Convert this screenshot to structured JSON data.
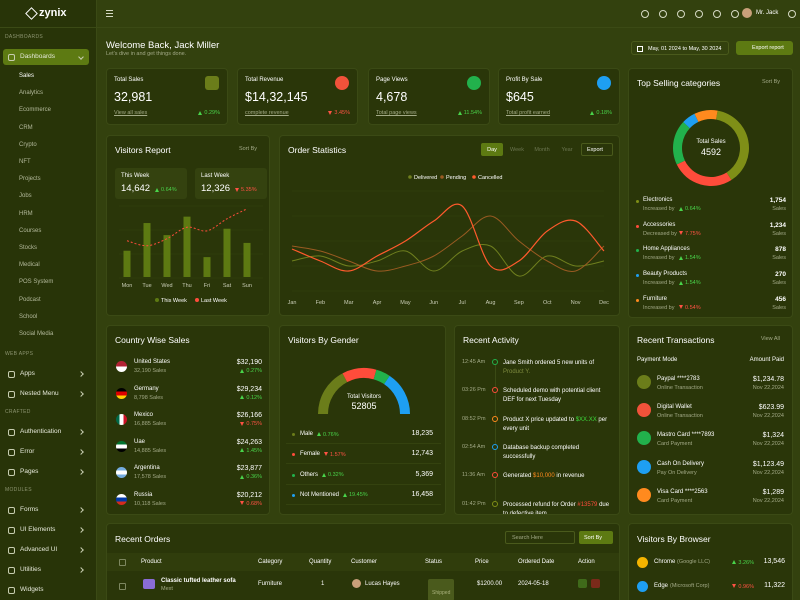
{
  "brand": "zynix",
  "header": {
    "user": "Mr. Jack"
  },
  "sidebar": [
    {
      "title": "DASHBOARDS",
      "items": [
        {
          "label": "Dashboards",
          "active": true,
          "submenu": true,
          "children": [
            {
              "label": "Sales",
              "active": true
            },
            {
              "label": "Analytics"
            },
            {
              "label": "Ecommerce"
            },
            {
              "label": "CRM"
            },
            {
              "label": "Crypto"
            },
            {
              "label": "NFT"
            },
            {
              "label": "Projects"
            },
            {
              "label": "Jobs"
            },
            {
              "label": "HRM"
            },
            {
              "label": "Courses"
            },
            {
              "label": "Stocks"
            },
            {
              "label": "Medical"
            },
            {
              "label": "POS System"
            },
            {
              "label": "Podcast"
            },
            {
              "label": "School"
            },
            {
              "label": "Social Media"
            }
          ]
        }
      ]
    },
    {
      "title": "WEB APPS",
      "items": [
        {
          "label": "Apps",
          "submenu": true
        },
        {
          "label": "Nested Menu",
          "submenu": true
        }
      ]
    },
    {
      "title": "CRAFTED",
      "items": [
        {
          "label": "Authentication",
          "submenu": true
        },
        {
          "label": "Error",
          "submenu": true
        },
        {
          "label": "Pages",
          "submenu": true
        }
      ]
    },
    {
      "title": "MODULES",
      "items": [
        {
          "label": "Forms",
          "submenu": true
        },
        {
          "label": "UI Elements",
          "submenu": true
        },
        {
          "label": "Advanced UI",
          "submenu": true
        },
        {
          "label": "Utilities",
          "submenu": true
        },
        {
          "label": "Widgets"
        }
      ]
    }
  ],
  "welcome": {
    "title": "Welcome Back, Jack Miller",
    "subtitle": "Let's dive in and get things done.",
    "date_range": "May, 01 2024 to May, 30 2024",
    "button": "Export report"
  },
  "stats": [
    {
      "title": "Total Sales",
      "value": "32,981",
      "link": "View all sales",
      "change": {
        "text": "0.29%",
        "trend": "up"
      },
      "icon_color": "#6b7d1a"
    },
    {
      "title": "Total Revenue",
      "value": "$14,32,145",
      "link": "complete revenue",
      "change": {
        "text": "3.45%",
        "trend": "down"
      },
      "icon_color": "#f0523a"
    },
    {
      "title": "Page Views",
      "value": "4,678",
      "link": "Total page views",
      "change": {
        "text": "11.54%",
        "trend": "up"
      },
      "icon_color": "#22b14c"
    },
    {
      "title": "Profit By Sale",
      "value": "$645",
      "link": "Total profit earned",
      "change": {
        "text": "0.18%",
        "trend": "up"
      },
      "icon_color": "#1e9ff2"
    }
  ],
  "visitors_report": {
    "title": "Visitors Report",
    "sort": "Sort By",
    "summary": [
      {
        "value": "14,642",
        "change": {
          "text": "0.64%",
          "trend": "up"
        }
      },
      {
        "value": "12,326",
        "change": {
          "text": "5.35%",
          "trend": "down"
        }
      }
    ],
    "chart": {
      "type": "bar",
      "categories": [
        "Mon",
        "Tue",
        "Wed",
        "Thu",
        "Fri",
        "Sat",
        "Sun"
      ],
      "ylim": [
        0,
        100
      ],
      "series": [
        {
          "name": "This Week",
          "color": "#5d7a12",
          "values": [
            37,
            76,
            59,
            85,
            28,
            68,
            48
          ]
        },
        {
          "name": "Last Week",
          "color": "#ff4c3b",
          "values": [
            51,
            44,
            54,
            70,
            65,
            82,
            96
          ]
        }
      ]
    }
  },
  "order_statistics": {
    "title": "Order Statistics",
    "tabs": [
      {
        "label": "Day",
        "active": true
      },
      {
        "label": "Week"
      },
      {
        "label": "Month"
      },
      {
        "label": "Year"
      }
    ],
    "export": "Export",
    "chart": {
      "type": "line",
      "categories": [
        "Jan",
        "Feb",
        "Mar",
        "Apr",
        "May",
        "Jun",
        "Jul",
        "Aug",
        "Sep",
        "Oct",
        "Nov",
        "Dec"
      ],
      "ylim": [
        0,
        100
      ],
      "series": [
        {
          "name": "Delivered",
          "color": "#6f7f1e",
          "values": [
            30,
            35,
            25,
            30,
            40,
            20,
            40,
            45,
            15,
            35,
            25,
            30
          ]
        },
        {
          "name": "Pending",
          "color": "#9a5b22",
          "values": [
            45,
            40,
            30,
            20,
            25,
            35,
            55,
            75,
            50,
            30,
            20,
            45
          ]
        },
        {
          "name": "Cancelled",
          "color": "#ff5a2c",
          "values": [
            42,
            30,
            20,
            35,
            50,
            70,
            85,
            25,
            30,
            60,
            70,
            40
          ]
        }
      ]
    }
  },
  "top_selling": {
    "title": "Top Selling categories",
    "sort": "Sort By",
    "center_label": "Total Sales",
    "total": 4592,
    "unit": "Sales",
    "items": [
      {
        "name": "Electronics",
        "trend_text": "Increased by",
        "change": {
          "text": "0.64%",
          "trend": "up"
        },
        "sales": 1754,
        "sales_label": "1,754",
        "color": "#7f8f17"
      },
      {
        "name": "Accessories",
        "trend_text": "Decreased by",
        "change": {
          "text": "7.75%",
          "trend": "down"
        },
        "sales": 1234,
        "sales_label": "1,234",
        "color": "#ff4c3b"
      },
      {
        "name": "Home Appliances",
        "trend_text": "Increased by",
        "change": {
          "text": "1.54%",
          "trend": "up"
        },
        "sales": 878,
        "sales_label": "878",
        "color": "#22b14c"
      },
      {
        "name": "Beauty Products",
        "trend_text": "Increased by",
        "change": {
          "text": "1.54%",
          "trend": "up"
        },
        "sales": 270,
        "sales_label": "270",
        "color": "#1e9ff2"
      },
      {
        "name": "Furniture",
        "trend_text": "Increased by",
        "change": {
          "text": "0.54%",
          "trend": "down"
        },
        "sales": 456,
        "sales_label": "456",
        "color": "#ff8a1e"
      }
    ]
  },
  "country_sales": {
    "title": "Country Wise Sales",
    "rows": [
      {
        "country": "United States",
        "sales": "32,190 Sales",
        "amount": "$32,190",
        "change": {
          "text": "0.27%",
          "trend": "up"
        }
      },
      {
        "country": "Germany",
        "sales": "8,798 Sales",
        "amount": "$29,234",
        "change": {
          "text": "0.12%",
          "trend": "up"
        }
      },
      {
        "country": "Mexico",
        "sales": "16,885 Sales",
        "amount": "$26,166",
        "change": {
          "text": "0.75%",
          "trend": "down"
        }
      },
      {
        "country": "Uae",
        "sales": "14,885 Sales",
        "amount": "$24,263",
        "change": {
          "text": "1.45%",
          "trend": "up"
        }
      },
      {
        "country": "Argentina",
        "sales": "17,578 Sales",
        "amount": "$23,877",
        "change": {
          "text": "0.36%",
          "trend": "up"
        }
      },
      {
        "country": "Russia",
        "sales": "10,118 Sales",
        "amount": "$20,212",
        "change": {
          "text": "0.68%",
          "trend": "down"
        }
      }
    ]
  },
  "visitors_gender": {
    "title": "Visitors By Gender",
    "center_label": "Total Visitors",
    "total": 52805,
    "rows": [
      {
        "label": "Male",
        "change": {
          "text": "0.76%",
          "trend": "up"
        },
        "value": 18235,
        "value_label": "18,235",
        "color": "#6b7d1a"
      },
      {
        "label": "Female",
        "change": {
          "text": "1.57%",
          "trend": "down"
        },
        "value": 12743,
        "value_label": "12,743",
        "color": "#ff4c3b"
      },
      {
        "label": "Others",
        "change": {
          "text": "0.32%",
          "trend": "up"
        },
        "value": 5369,
        "value_label": "5,369",
        "color": "#22b14c"
      },
      {
        "label": "Not Mentioned",
        "change": {
          "text": "19.45%",
          "trend": "up"
        },
        "value": 16458,
        "value_label": "16,458",
        "color": "#1e9ff2"
      }
    ]
  },
  "recent_activity": {
    "title": "Recent Activity",
    "items": [
      {
        "time": "12:45 Am",
        "before": "Jane Smith ordered 5 new units of ",
        "highlight": "Product Y.",
        "after": "",
        "highlight_color": "#7d8a3e",
        "dot": "#22b14c"
      },
      {
        "time": "03:26 Pm",
        "before": "Scheduled demo with potential client DEF for next Tuesday",
        "highlight": "",
        "after": "",
        "highlight_color": "#ffffff",
        "dot": "#ff4c3b"
      },
      {
        "time": "08:52 Pm",
        "before": "Product X price updated to ",
        "highlight": "$XX.XX",
        "after": " per every unit",
        "highlight_color": "#3ddc3d",
        "dot": "#ff8a1e"
      },
      {
        "time": "02:54 Am",
        "before": "Database backup completed successfully",
        "highlight": "",
        "after": "",
        "highlight_color": "#ffffff",
        "dot": "#1e9ff2"
      },
      {
        "time": "11:36 Am",
        "before": "Generated ",
        "highlight": "$10,000",
        "after": " in revenue",
        "highlight_color": "#ff8a1e",
        "dot": "#ff4c3b"
      },
      {
        "time": "01:42 Pm",
        "before": "Processed refund for Order ",
        "highlight": "#13579",
        "after": " due to defective item",
        "highlight_color": "#ff4c3b",
        "dot": "#7f8f17"
      }
    ]
  },
  "recent_transactions": {
    "title": "Recent Transactions",
    "view_all": "View All",
    "col_left": "Payment Mode",
    "col_right": "Amount Paid",
    "rows": [
      {
        "name": "Paypal ****2783",
        "type": "Online Transaction",
        "amount": "$1,234.78",
        "date": "Nov 22,2024",
        "icon_color": "#6b7d1a"
      },
      {
        "name": "Digital Wallet",
        "type": "Online Transaction",
        "amount": "$623.99",
        "date": "Nov 22,2024",
        "icon_color": "#f0523a"
      },
      {
        "name": "Mastro Card ****7893",
        "type": "Card Payment",
        "amount": "$1,324",
        "date": "Nov 22,2024",
        "icon_color": "#22b14c"
      },
      {
        "name": "Cash On Delivery",
        "type": "Pay On Delivery",
        "amount": "$1,123.49",
        "date": "Nov 22,2024",
        "icon_color": "#1e9ff2"
      },
      {
        "name": "Visa Card ****2563",
        "type": "Card Payment",
        "amount": "$1,289",
        "date": "Nov 22,2024",
        "icon_color": "#ff8a1e"
      }
    ]
  },
  "recent_orders": {
    "title": "Recent Orders",
    "search": "Search Here",
    "sort": "Sort By",
    "columns": [
      "Product",
      "Category",
      "Quantity",
      "Customer",
      "Status",
      "Price",
      "Ordered Date",
      "Action"
    ],
    "rows": [
      {
        "product": "Classic tufted leather sofa",
        "brand": "Mext",
        "category": "Furniture",
        "quantity": "1",
        "customer": "Lucas Hayes",
        "status": "Shipped",
        "price": "$1200.00",
        "date": "2024-05-18"
      }
    ]
  },
  "visitors_browser": {
    "title": "Visitors By Browser",
    "rows": [
      {
        "name": "Chrome",
        "company": "(Google LLC)",
        "change": {
          "text": "3.26%",
          "trend": "up"
        },
        "value": "13,546",
        "icon_color": "#f4b400"
      },
      {
        "name": "Edge",
        "company": "(Microsoft Corp)",
        "change": {
          "text": "0.96%",
          "trend": "down"
        },
        "value": "11,322",
        "icon_color": "#1e9ff2"
      }
    ]
  }
}
